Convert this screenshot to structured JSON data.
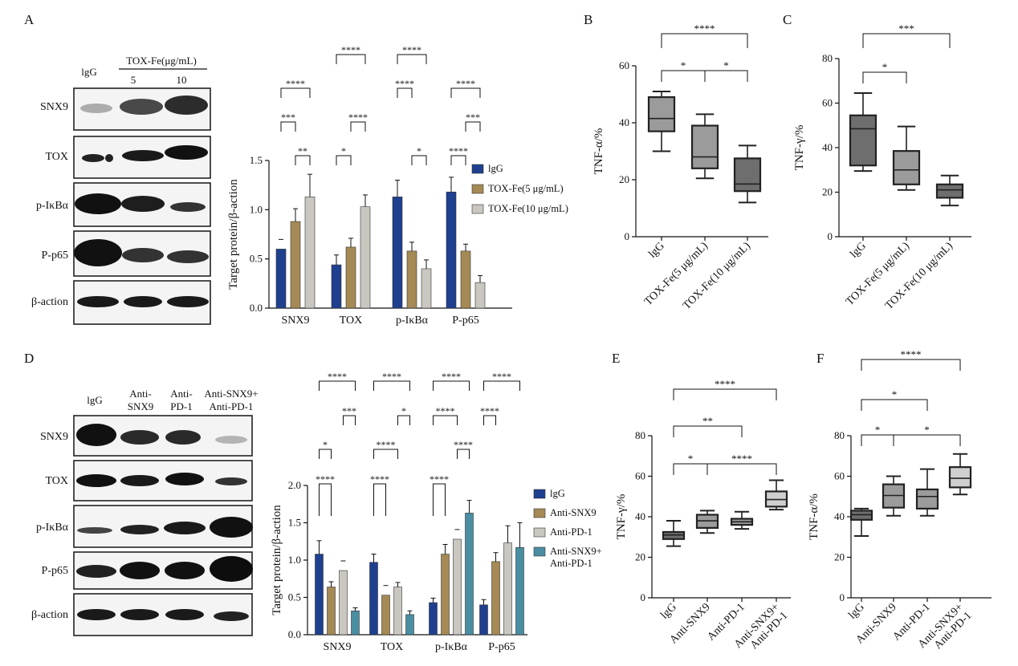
{
  "panel_labels": [
    "A",
    "B",
    "C",
    "D",
    "E",
    "F"
  ],
  "colors": {
    "igg": "#1f3f8f",
    "tan": "#a58a55",
    "grey": "#c9c7c0",
    "teal": "#4a8ea2",
    "box_dark": "#6e6e6e",
    "box_mid": "#9b9b9b",
    "box_light": "#cfcfcf"
  },
  "blot_A": {
    "lane_headers": [
      "lgG",
      "TOX-Fe(μg/mL)",
      "5",
      "10"
    ],
    "rows": [
      "SNX9",
      "TOX",
      "p-IκBα",
      "P-p65",
      "β-action"
    ]
  },
  "blot_D": {
    "lane_headers": [
      "lgG",
      "Anti-",
      "SNX9",
      "Anti-",
      "PD-1",
      "Anti-SNX9+",
      "Anti-PD-1"
    ],
    "rows": [
      "SNX9",
      "TOX",
      "p-IκBα",
      "P-p65",
      "β-action"
    ]
  },
  "chart_data": [
    {
      "panel": "A",
      "type": "bar",
      "ylabel": "Target protein/β-action",
      "ylim": [
        0,
        1.5
      ],
      "yticks": [
        "0.0",
        "0.5",
        "1.0",
        "1.5"
      ],
      "categories": [
        "SNX9",
        "TOX",
        "p-IκBα",
        "P-p65"
      ],
      "series": [
        {
          "name": "lgG",
          "values": [
            0.6,
            0.44,
            1.13,
            1.18
          ],
          "errors": [
            0.0,
            0.1,
            0.17,
            0.15
          ]
        },
        {
          "name": "TOX-Fe(5 μg/mL)",
          "values": [
            0.88,
            0.62,
            0.58,
            0.58
          ],
          "errors": [
            0.13,
            0.09,
            0.09,
            0.07
          ]
        },
        {
          "name": "TOX-Fe(10 μg/mL)",
          "values": [
            1.13,
            1.03,
            0.4,
            0.26
          ],
          "errors": [
            0.23,
            0.12,
            0.09,
            0.07
          ]
        }
      ],
      "legend": "right",
      "significance": [
        "***",
        "****",
        "**",
        "*",
        "****",
        "****",
        "****",
        "*",
        "****",
        "****",
        "***",
        "****"
      ]
    },
    {
      "panel": "B",
      "type": "box",
      "ylabel": "TNF-α/%",
      "ylim": [
        0,
        60
      ],
      "yticks": [
        "0",
        "20",
        "40",
        "60"
      ],
      "categories": [
        "lgG",
        "TOX-Fe(5 μg/mL)",
        "TOX-Fe(10 μg/mL)"
      ],
      "boxes": [
        {
          "min": 30,
          "q1": 37,
          "median": 41.5,
          "q3": 49,
          "max": 51
        },
        {
          "min": 20.5,
          "q1": 24,
          "median": 28,
          "q3": 39,
          "max": 43
        },
        {
          "min": 12,
          "q1": 16,
          "median": 18.5,
          "q3": 27.5,
          "max": 32
        }
      ],
      "significance": [
        "*",
        "*",
        "****"
      ]
    },
    {
      "panel": "C",
      "type": "box",
      "ylabel": "TNF-γ/%",
      "ylim": [
        0,
        80
      ],
      "yticks": [
        "0",
        "20",
        "40",
        "60",
        "80"
      ],
      "categories": [
        "lgG",
        "TOX-Fe(5 μg/mL)",
        "TOX-Fe(10 μg/mL)"
      ],
      "boxes": [
        {
          "min": 29.5,
          "q1": 32,
          "median": 48.5,
          "q3": 54.5,
          "max": 64.5
        },
        {
          "min": 21,
          "q1": 23.5,
          "median": 30,
          "q3": 38.5,
          "max": 49.5
        },
        {
          "min": 14,
          "q1": 17.5,
          "median": 21,
          "q3": 23.5,
          "max": 27.5
        }
      ],
      "significance": [
        "*",
        "***"
      ]
    },
    {
      "panel": "D",
      "type": "bar",
      "ylabel": "Target protein/β-action",
      "ylim": [
        0,
        2.0
      ],
      "yticks": [
        "0.0",
        "0.5",
        "1.0",
        "1.5",
        "2.0"
      ],
      "categories": [
        "SNX9",
        "TOX",
        "p-IκBα",
        "P-p65"
      ],
      "series": [
        {
          "name": "lgG",
          "values": [
            1.08,
            0.97,
            0.43,
            0.4
          ],
          "errors": [
            0.18,
            0.11,
            0.06,
            0.07
          ]
        },
        {
          "name": "Anti-SNX9",
          "values": [
            0.64,
            0.53,
            1.08,
            0.98
          ],
          "errors": [
            0.07,
            0.0,
            0.13,
            0.12
          ]
        },
        {
          "name": "Anti-PD-1",
          "values": [
            0.86,
            0.64,
            1.28,
            1.23
          ],
          "errors": [
            0.0,
            0.06,
            0.0,
            0.23
          ]
        },
        {
          "name": "Anti-SNX9+ Anti-PD-1",
          "values": [
            0.32,
            0.27,
            1.63,
            1.17
          ],
          "errors": [
            0.04,
            0.05,
            0.17,
            0.33
          ]
        }
      ],
      "legend": "right",
      "significance": [
        "*",
        "****",
        "***",
        "****",
        "****",
        "*",
        "****",
        "****",
        "****",
        "****",
        "****",
        "****",
        "****",
        "****"
      ]
    },
    {
      "panel": "E",
      "type": "box",
      "ylabel": "TNF-γ/%",
      "ylim": [
        0,
        80
      ],
      "yticks": [
        "0",
        "20",
        "40",
        "60",
        "80"
      ],
      "categories": [
        "lgG",
        "Anti-SNX9",
        "Anti-PD-1",
        "Anti-SNX9+ Anti-PD-1"
      ],
      "boxes": [
        {
          "min": 25.5,
          "q1": 29,
          "median": 31,
          "q3": 32.5,
          "max": 38
        },
        {
          "min": 32,
          "q1": 34.5,
          "median": 38,
          "q3": 41,
          "max": 43
        },
        {
          "min": 34,
          "q1": 36,
          "median": 37.5,
          "q3": 39,
          "max": 42.5
        },
        {
          "min": 43.5,
          "q1": 45,
          "median": 48.5,
          "q3": 52.5,
          "max": 58
        }
      ],
      "significance": [
        "*",
        "****",
        "**",
        "****"
      ]
    },
    {
      "panel": "F",
      "type": "box",
      "ylabel": "TNF-α/%",
      "ylim": [
        0,
        80
      ],
      "yticks": [
        "0",
        "20",
        "40",
        "60",
        "80"
      ],
      "categories": [
        "lgG",
        "Anti-SNX9",
        "Anti-PD-1",
        "Anti-SNX9+ Anti-PD-1"
      ],
      "boxes": [
        {
          "min": 30.5,
          "q1": 38.5,
          "median": 41,
          "q3": 43,
          "max": 44
        },
        {
          "min": 40.5,
          "q1": 44.5,
          "median": 50.5,
          "q3": 56,
          "max": 60
        },
        {
          "min": 40.5,
          "q1": 44,
          "median": 50,
          "q3": 53.5,
          "max": 63.5
        },
        {
          "min": 51,
          "q1": 54.5,
          "median": 59,
          "q3": 64.5,
          "max": 71
        }
      ],
      "significance": [
        "*",
        "*",
        "*",
        "****"
      ]
    }
  ]
}
